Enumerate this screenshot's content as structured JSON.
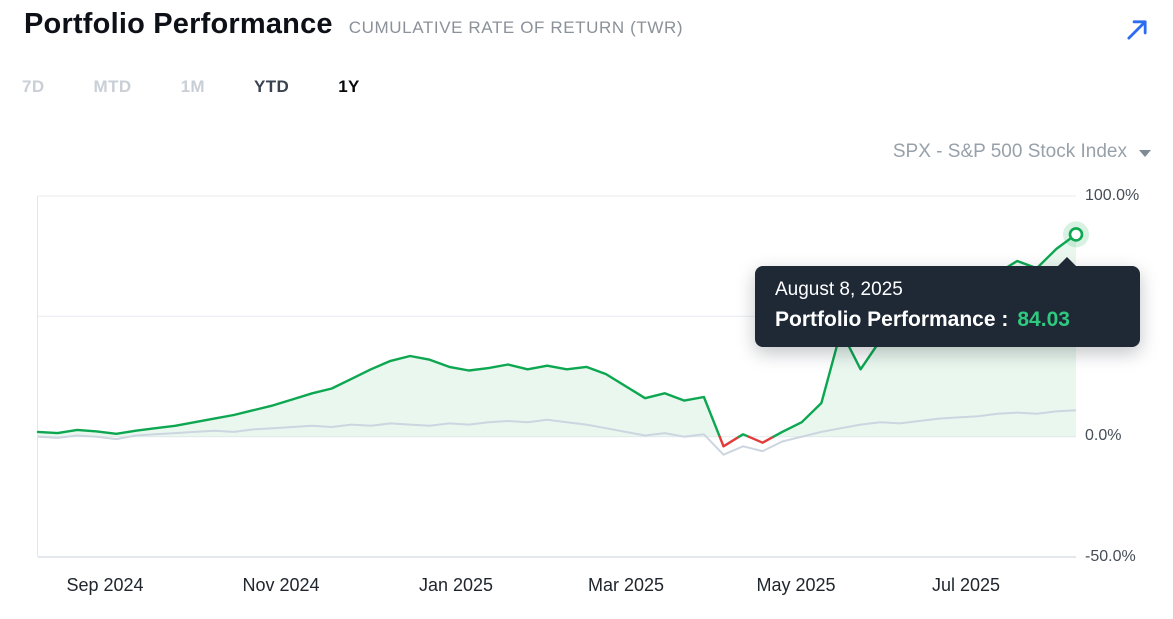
{
  "header": {
    "title": "Portfolio Performance",
    "subtitle": "CUMULATIVE RATE OF RETURN (TWR)"
  },
  "tabs": [
    {
      "label": "7D",
      "state": "inactive"
    },
    {
      "label": "MTD",
      "state": "inactive"
    },
    {
      "label": "1M",
      "state": "inactive"
    },
    {
      "label": "YTD",
      "state": "secondary"
    },
    {
      "label": "1Y",
      "state": "active"
    }
  ],
  "benchmark_selector": {
    "label": "SPX - S&P 500 Stock Index"
  },
  "tooltip": {
    "date": "August 8, 2025",
    "label": "Portfolio Performance :",
    "value": "84.03"
  },
  "icons": {
    "expand": "external-arrow",
    "benchmark_chevron": "chevron-down"
  },
  "colors": {
    "portfolio_line": "#0ca750",
    "portfolio_negative": "#e23b3b",
    "benchmark_line": "#ccd5e0",
    "tooltip_bg": "#1e2935",
    "tooltip_value": "#2ec97e",
    "expand_arrow": "#2b6cf0",
    "gridline": "#e8ebef",
    "axis_line": "#c9cfd7"
  },
  "chart_data": {
    "type": "line",
    "title": "Portfolio Performance - Cumulative Rate of Return (TWR), 1Y",
    "x_range": [
      "Aug 2024",
      "Aug 2025"
    ],
    "x_tick_labels": [
      "Sep 2024",
      "Nov 2024",
      "Jan 2025",
      "Mar 2025",
      "May 2025",
      "Jul 2025"
    ],
    "y_tick_labels": [
      "100.0%",
      "0.0%",
      "-50.0%"
    ],
    "ylim": [
      -50,
      100
    ],
    "gridlines_y": [
      100,
      50,
      0,
      -50
    ],
    "legend_position": "none",
    "series": [
      {
        "name": "Portfolio Performance",
        "color": "#0ca750",
        "negative_color": "#e23b3b",
        "fill": true,
        "values": [
          2.0,
          1.5,
          2.8,
          2.2,
          1.2,
          2.5,
          3.5,
          4.5,
          6.0,
          7.5,
          9.0,
          11.0,
          13.0,
          15.5,
          18.0,
          20.0,
          24.0,
          28.0,
          31.5,
          33.5,
          32.0,
          29.0,
          27.5,
          28.5,
          30.0,
          28.0,
          29.5,
          28.0,
          29.0,
          26.0,
          21.0,
          16.0,
          18.0,
          15.0,
          16.5,
          -4.0,
          1.0,
          -2.5,
          2.0,
          6.0,
          14.0,
          44.0,
          28.0,
          40.0,
          45.0,
          50.0,
          54.0,
          59.0,
          64.0,
          68.0,
          73.0,
          70.0,
          78.0,
          84.03
        ]
      },
      {
        "name": "SPX - S&P 500 Stock Index",
        "color": "#ccd5e0",
        "fill": false,
        "values": [
          0.0,
          -0.5,
          0.5,
          0.0,
          -1.0,
          0.5,
          1.0,
          1.5,
          2.0,
          2.5,
          2.0,
          3.0,
          3.5,
          4.0,
          4.5,
          4.0,
          5.0,
          4.5,
          5.5,
          5.0,
          4.5,
          5.5,
          5.0,
          6.0,
          6.5,
          6.0,
          7.0,
          6.0,
          5.0,
          3.5,
          2.0,
          0.5,
          1.5,
          0.0,
          1.0,
          -7.5,
          -4.0,
          -6.0,
          -2.0,
          0.0,
          2.0,
          3.5,
          5.0,
          6.0,
          5.5,
          6.5,
          7.5,
          8.0,
          8.5,
          9.5,
          10.0,
          9.5,
          10.5,
          11.0
        ]
      }
    ],
    "end_marker": {
      "series": "Portfolio Performance",
      "date": "August 8, 2025",
      "value": 84.03
    }
  }
}
